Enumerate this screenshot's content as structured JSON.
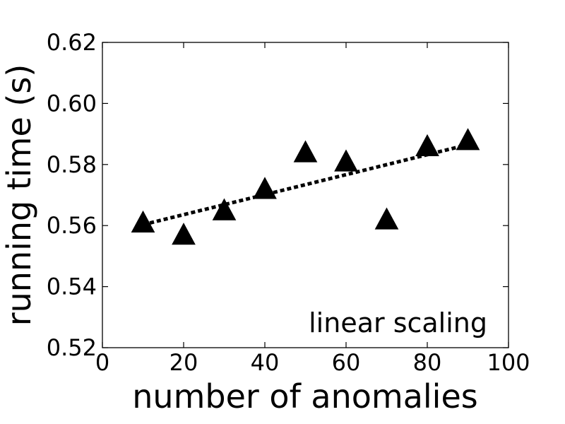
{
  "chart_data": {
    "type": "scatter",
    "xlabel": "number of anomalies",
    "ylabel": "running time (s)",
    "xlim": [
      0,
      100
    ],
    "ylim": [
      0.52,
      0.62
    ],
    "x_ticks": [
      "0",
      "20",
      "40",
      "60",
      "80",
      "100"
    ],
    "y_ticks": [
      "0.52",
      "0.54",
      "0.56",
      "0.58",
      "0.60",
      "0.62"
    ],
    "grid": false,
    "series": [
      {
        "marker": "triangle",
        "color": "#000000",
        "points": [
          {
            "x": 10,
            "y": 0.561
          },
          {
            "x": 20,
            "y": 0.557
          },
          {
            "x": 30,
            "y": 0.565
          },
          {
            "x": 40,
            "y": 0.572
          },
          {
            "x": 50,
            "y": 0.584
          },
          {
            "x": 60,
            "y": 0.581
          },
          {
            "x": 70,
            "y": 0.562
          },
          {
            "x": 80,
            "y": 0.586
          },
          {
            "x": 90,
            "y": 0.588
          }
        ]
      }
    ],
    "fit_line": {
      "style": "dotted",
      "color": "#000000",
      "start": {
        "x": 10,
        "y": 0.5603
      },
      "end": {
        "x": 90,
        "y": 0.5865
      }
    },
    "annotation": "linear scaling"
  }
}
